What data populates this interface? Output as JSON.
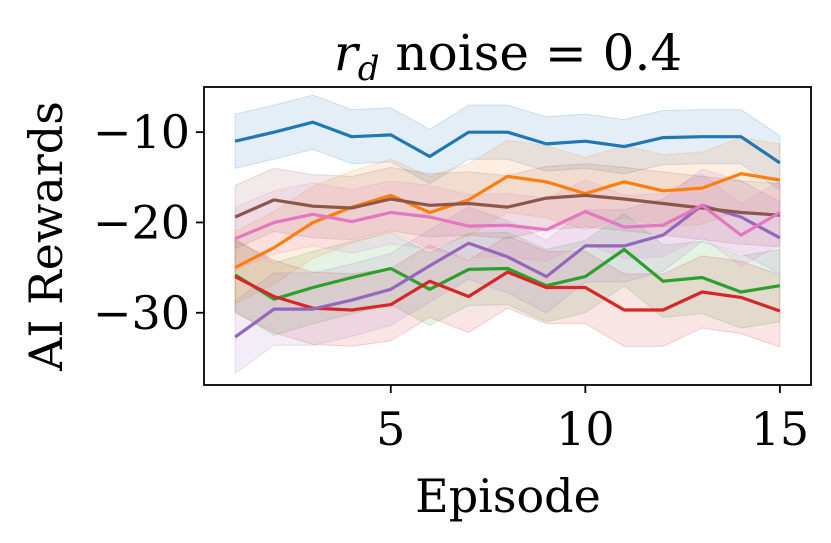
{
  "chart_data": {
    "type": "line",
    "title": {
      "variable": "r",
      "subscript": "d",
      "rest": " noise = 0.4"
    },
    "xlabel": "Episode",
    "ylabel": "AI Rewards",
    "xlim": [
      0.2,
      15.8
    ],
    "ylim": [
      -38.0,
      -5.0
    ],
    "xticks": [
      {
        "value": 5,
        "label": "5"
      },
      {
        "value": 10,
        "label": "10"
      },
      {
        "value": 15,
        "label": "15"
      }
    ],
    "yticks": [
      {
        "value": -10,
        "label": "−10"
      },
      {
        "value": -20,
        "label": "−20"
      },
      {
        "value": -30,
        "label": "−30"
      }
    ],
    "grid": false,
    "legend": "none",
    "x": [
      1,
      2,
      3,
      4,
      5,
      6,
      7,
      8,
      9,
      10,
      11,
      12,
      13,
      14,
      15
    ],
    "series": [
      {
        "name": "blue",
        "color": "#1f77b4",
        "values": [
          -11.0,
          -10.0,
          -8.9,
          -10.5,
          -10.3,
          -12.7,
          -10.0,
          -10.0,
          -11.3,
          -11.0,
          -11.6,
          -10.6,
          -10.5,
          -10.5,
          -13.4
        ],
        "band": 3.0
      },
      {
        "name": "orange",
        "color": "#ff7f0e",
        "values": [
          -25.0,
          -22.8,
          -20.0,
          -18.3,
          -17.0,
          -18.9,
          -17.5,
          -14.9,
          -15.5,
          -16.8,
          -15.5,
          -16.5,
          -16.2,
          -14.6,
          -15.3
        ],
        "band": 4.0
      },
      {
        "name": "green",
        "color": "#2ca02c",
        "values": [
          -25.8,
          -28.5,
          -27.2,
          -26.1,
          -25.1,
          -27.4,
          -25.2,
          -25.1,
          -27.0,
          -26.0,
          -23.0,
          -26.5,
          -26.1,
          -27.7,
          -27.0
        ],
        "band": 4.0
      },
      {
        "name": "red",
        "color": "#d62728",
        "values": [
          -26.0,
          -28.2,
          -29.5,
          -29.7,
          -29.1,
          -26.5,
          -28.2,
          -25.5,
          -27.2,
          -27.2,
          -29.7,
          -29.7,
          -27.7,
          -28.3,
          -29.8
        ],
        "band": 4.0
      },
      {
        "name": "purple",
        "color": "#9467bd",
        "values": [
          -32.7,
          -29.6,
          -29.6,
          -28.6,
          -27.4,
          -24.8,
          -22.3,
          -23.8,
          -26.0,
          -22.6,
          -22.6,
          -21.4,
          -18.1,
          -19.4,
          -21.7
        ],
        "band": 4.0
      },
      {
        "name": "brown",
        "color": "#8c564b",
        "values": [
          -19.4,
          -17.5,
          -18.2,
          -18.4,
          -17.4,
          -18.1,
          -17.9,
          -18.3,
          -17.3,
          -17.0,
          -17.4,
          -17.9,
          -18.4,
          -18.9,
          -19.2
        ],
        "band": 3.5
      },
      {
        "name": "pink",
        "color": "#e377c2",
        "values": [
          -21.8,
          -20.0,
          -19.1,
          -19.9,
          -18.9,
          -19.4,
          -20.4,
          -20.3,
          -20.8,
          -18.8,
          -20.5,
          -20.3,
          -18.1,
          -21.4,
          -18.9
        ],
        "band": 3.5
      }
    ]
  }
}
